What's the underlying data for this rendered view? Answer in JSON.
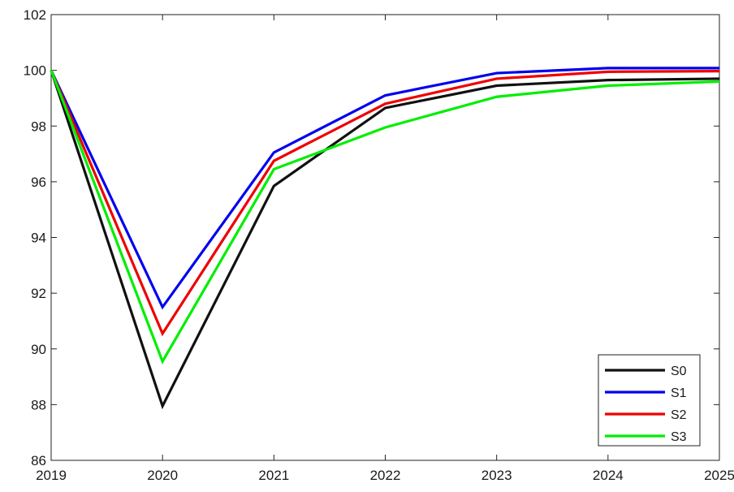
{
  "chart_data": {
    "type": "line",
    "title": "",
    "xlabel": "",
    "ylabel": "",
    "x": [
      2019,
      2020,
      2021,
      2022,
      2023,
      2024,
      2025
    ],
    "xlim": [
      2019,
      2025
    ],
    "ylim": [
      86,
      102
    ],
    "xticks": [
      "2019",
      "2020",
      "2021",
      "2022",
      "2023",
      "2024",
      "2025"
    ],
    "yticks": [
      "86",
      "88",
      "90",
      "92",
      "94",
      "96",
      "98",
      "100",
      "102"
    ],
    "grid": false,
    "legend_position": "bottom-right",
    "series": [
      {
        "name": "S0",
        "color": "#111111",
        "values": [
          100,
          87.95,
          95.85,
          98.65,
          99.45,
          99.65,
          99.7
        ]
      },
      {
        "name": "S1",
        "color": "#0000ee",
        "values": [
          100,
          91.5,
          97.05,
          99.1,
          99.9,
          100.08,
          100.08
        ]
      },
      {
        "name": "S2",
        "color": "#ee0000",
        "values": [
          100,
          90.55,
          96.75,
          98.8,
          99.7,
          99.95,
          99.97
        ]
      },
      {
        "name": "S3",
        "color": "#00ee00",
        "values": [
          100,
          89.55,
          96.45,
          97.95,
          99.05,
          99.45,
          99.6
        ]
      }
    ]
  }
}
